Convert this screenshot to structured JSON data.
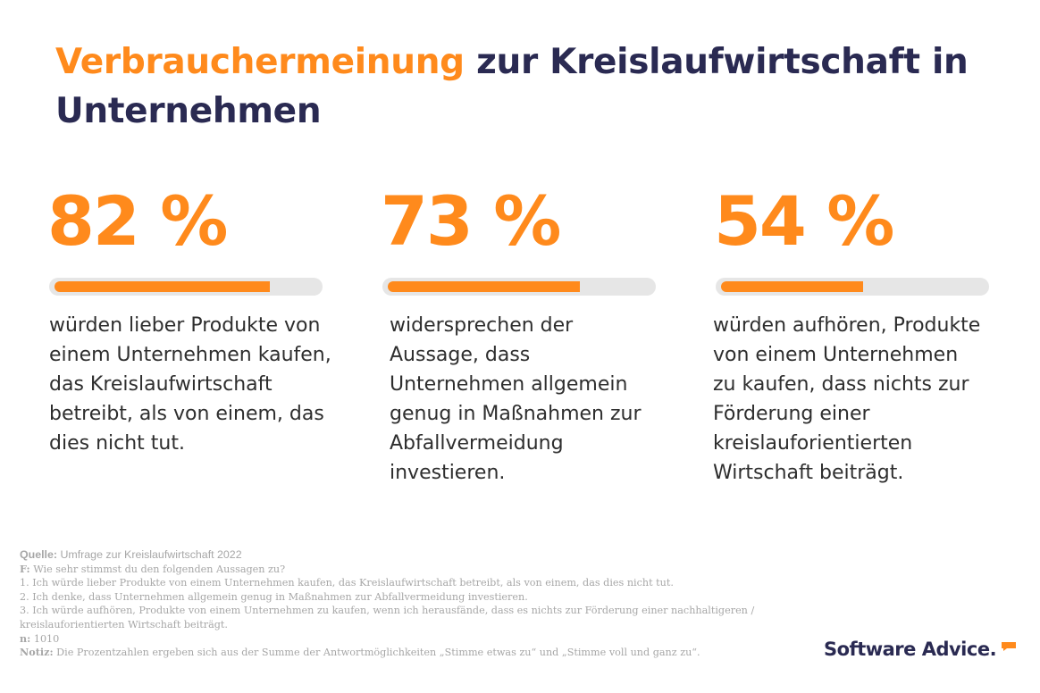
{
  "title": {
    "accent": "Verbrauchermeinung",
    "rest": " zur Kreislaufwirtschaft in Unternehmen"
  },
  "colors": {
    "accent": "#ff8a1c",
    "navy": "#2a2a52",
    "track": "#e6e6e6"
  },
  "chart_data": {
    "type": "bar",
    "values": [
      82,
      73,
      54
    ],
    "value_labels": [
      "82 %",
      "73 %",
      "54 %"
    ],
    "descriptions": [
      "würden lieber Produkte von einem Unternehmen kaufen, das Kreislaufwirtschaft betreibt, als von einem, das dies nicht tut.",
      "widersprechen der Aussage, dass Unternehmen allgemein genug in Maßnahmen zur Abfallvermeidung investieren.",
      "würden aufhören, Produkte von einem Unternehmen zu kaufen, dass nichts zur Förderung einer kreislauforientierten Wirtschaft beiträgt."
    ],
    "ylim": [
      0,
      100
    ]
  },
  "footnote": {
    "source_label": "Quelle:",
    "source_text": " Umfrage zur Kreislaufwirtschaft 2022",
    "question_label": "F:",
    "question_text": " Wie sehr stimmst du den folgenden Aussagen zu?",
    "item1": "1. Ich würde lieber Produkte von einem Unternehmen kaufen, das Kreislaufwirtschaft betreibt, als von einem, das dies nicht tut.",
    "item2": "2. Ich denke, dass Unternehmen allgemein genug in Maßnahmen zur Abfallvermeidung investieren.",
    "item3a": "3. Ich würde aufhören, Produkte von einem Unternehmen zu kaufen, wenn ich herausfände, dass es nichts zur Förderung einer nachhaltigeren /",
    "item3b": "kreislauforientierten Wirtschaft beiträgt.",
    "n_label": "n:",
    "n_text": " 1010",
    "note_label": "Notiz:",
    "note_text": " Die Prozentzahlen ergeben sich aus der Summe der Antwortmöglichkeiten „Stimme etwas zu“ und „Stimme voll und ganz zu“."
  },
  "logo": {
    "text": "Software Advice.",
    "icon": "speech-bubble-icon"
  }
}
